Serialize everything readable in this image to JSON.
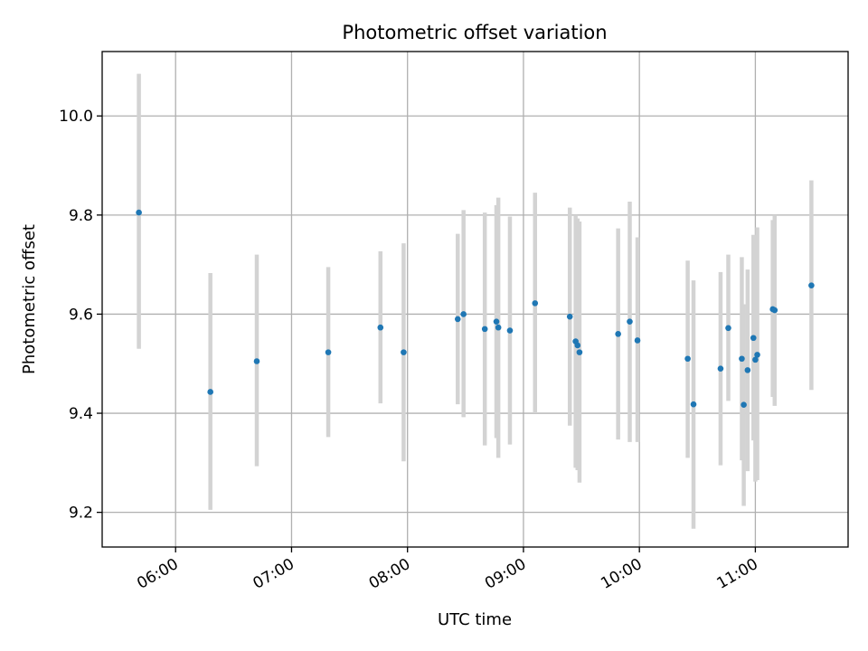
{
  "chart_data": {
    "type": "scatter",
    "title": "Photometric offset variation",
    "xlabel": "UTC time",
    "ylabel": "Photometric offset",
    "x_ticks": [
      "06:00",
      "07:00",
      "08:00",
      "09:00",
      "10:00",
      "11:00"
    ],
    "y_ticks": [
      9.2,
      9.4,
      9.6,
      9.8,
      10.0
    ],
    "xlim": [
      "05:22",
      "11:48"
    ],
    "ylim": [
      9.13,
      10.13
    ],
    "grid": true,
    "colors": {
      "point": "#1f77b4",
      "errorbar": "#d3d3d3"
    },
    "points": [
      {
        "t": "05:41",
        "y": 9.805,
        "lo": 9.53,
        "hi": 10.085
      },
      {
        "t": "06:18",
        "y": 9.443,
        "lo": 9.205,
        "hi": 9.683
      },
      {
        "t": "06:42",
        "y": 9.505,
        "lo": 9.293,
        "hi": 9.72
      },
      {
        "t": "07:19",
        "y": 9.523,
        "lo": 9.352,
        "hi": 9.695
      },
      {
        "t": "07:46",
        "y": 9.573,
        "lo": 9.42,
        "hi": 9.727
      },
      {
        "t": "07:58",
        "y": 9.523,
        "lo": 9.303,
        "hi": 9.743
      },
      {
        "t": "08:26",
        "y": 9.59,
        "lo": 9.418,
        "hi": 9.762
      },
      {
        "t": "08:29",
        "y": 9.6,
        "lo": 9.392,
        "hi": 9.81
      },
      {
        "t": "08:40",
        "y": 9.57,
        "lo": 9.335,
        "hi": 9.805
      },
      {
        "t": "08:46",
        "y": 9.585,
        "lo": 9.35,
        "hi": 9.82
      },
      {
        "t": "08:47",
        "y": 9.573,
        "lo": 9.31,
        "hi": 9.835
      },
      {
        "t": "08:53",
        "y": 9.567,
        "lo": 9.337,
        "hi": 9.797
      },
      {
        "t": "09:06",
        "y": 9.622,
        "lo": 9.4,
        "hi": 9.845
      },
      {
        "t": "09:24",
        "y": 9.595,
        "lo": 9.375,
        "hi": 9.815
      },
      {
        "t": "09:27",
        "y": 9.545,
        "lo": 9.29,
        "hi": 9.8
      },
      {
        "t": "09:28",
        "y": 9.537,
        "lo": 9.285,
        "hi": 9.793
      },
      {
        "t": "09:29",
        "y": 9.523,
        "lo": 9.26,
        "hi": 9.787
      },
      {
        "t": "09:49",
        "y": 9.56,
        "lo": 9.347,
        "hi": 9.773
      },
      {
        "t": "09:55",
        "y": 9.585,
        "lo": 9.342,
        "hi": 9.827
      },
      {
        "t": "09:59",
        "y": 9.547,
        "lo": 9.342,
        "hi": 9.755
      },
      {
        "t": "10:25",
        "y": 9.51,
        "lo": 9.31,
        "hi": 9.708
      },
      {
        "t": "10:28",
        "y": 9.418,
        "lo": 9.167,
        "hi": 9.668
      },
      {
        "t": "10:42",
        "y": 9.49,
        "lo": 9.295,
        "hi": 9.685
      },
      {
        "t": "10:46",
        "y": 9.572,
        "lo": 9.425,
        "hi": 9.72
      },
      {
        "t": "10:53",
        "y": 9.51,
        "lo": 9.305,
        "hi": 9.715
      },
      {
        "t": "10:54",
        "y": 9.417,
        "lo": 9.213,
        "hi": 9.62
      },
      {
        "t": "10:56",
        "y": 9.487,
        "lo": 9.283,
        "hi": 9.69
      },
      {
        "t": "10:59",
        "y": 9.552,
        "lo": 9.345,
        "hi": 9.76
      },
      {
        "t": "11:00",
        "y": 9.508,
        "lo": 9.262,
        "hi": 9.755
      },
      {
        "t": "11:01",
        "y": 9.518,
        "lo": 9.265,
        "hi": 9.775
      },
      {
        "t": "11:09",
        "y": 9.61,
        "lo": 9.433,
        "hi": 9.79
      },
      {
        "t": "11:10",
        "y": 9.608,
        "lo": 9.415,
        "hi": 9.8
      },
      {
        "t": "11:29",
        "y": 9.658,
        "lo": 9.447,
        "hi": 9.87
      }
    ]
  }
}
